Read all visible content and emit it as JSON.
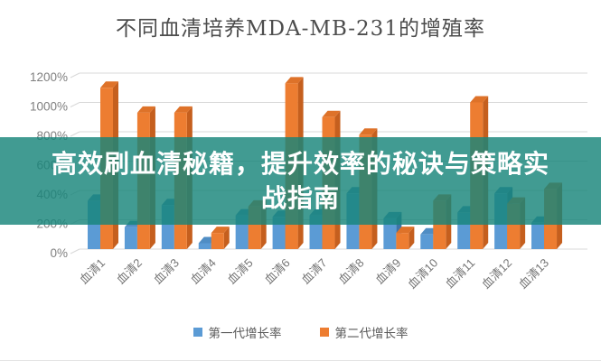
{
  "header": {
    "title": "不同血清培养MDA-MB-231的增殖率"
  },
  "overlay": {
    "line1": "高效刷血清秘籍，提升效率的秘诀与策略实",
    "line2": "战指南",
    "full_text": "高效刷血清秘籍，提升效率的秘诀与策略实战指南",
    "background_color": "#17857A",
    "text_color": "#FFFFFF"
  },
  "chart_data": {
    "type": "bar",
    "style": "3d-clustered-column",
    "title": "不同血清培养MDA-MB-231的增殖率",
    "categories": [
      "血清1",
      "血清2",
      "血清3",
      "血清4",
      "血清5",
      "血清6",
      "血清7",
      "血清8",
      "血清9",
      "血清10",
      "血清11",
      "血清12",
      "血清13"
    ],
    "series": [
      {
        "name": "第一代增长率",
        "color": "#5B9BD5",
        "color_side": "#3E74A8",
        "color_top": "#4F8DC4",
        "values": [
          330,
          150,
          300,
          40,
          230,
          220,
          230,
          380,
          210,
          100,
          250,
          380,
          180
        ]
      },
      {
        "name": "第二代增长率",
        "color": "#ED7D31",
        "color_side": "#C55F1E",
        "color_top": "#DE7229",
        "values": [
          1100,
          930,
          930,
          110,
          290,
          1130,
          900,
          780,
          110,
          330,
          1000,
          310,
          410
        ]
      }
    ],
    "unit": "%",
    "y_ticks": [
      "0%",
      "200%",
      "400%",
      "600%",
      "800%",
      "1000%",
      "1200%"
    ],
    "ylim": [
      0,
      1200
    ],
    "grid": true,
    "legend_position": "bottom"
  },
  "legend": {
    "items": [
      {
        "label": "第一代增长率",
        "color": "#5B9BD5"
      },
      {
        "label": "第二代增长率",
        "color": "#ED7D31"
      }
    ]
  }
}
